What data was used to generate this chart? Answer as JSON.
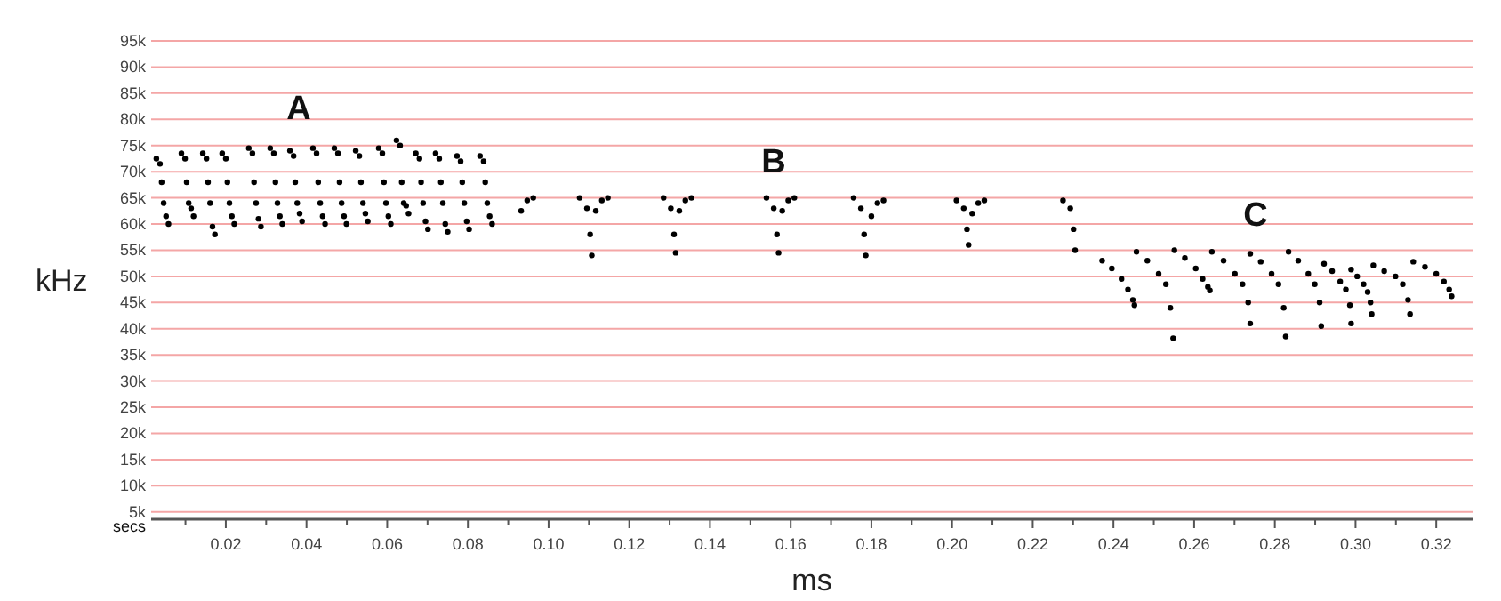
{
  "chart_data": {
    "type": "scatter",
    "xlabel": "ms",
    "ylabel": "kHz",
    "xlim": [
      0.0015,
      0.329
    ],
    "ylim": [
      3.6,
      95
    ],
    "xticks": [
      {
        "value": 0.01,
        "label": null
      },
      {
        "value": 0.02,
        "label": "0.02"
      },
      {
        "value": 0.03,
        "label": null
      },
      {
        "value": 0.04,
        "label": "0.04"
      },
      {
        "value": 0.05,
        "label": null
      },
      {
        "value": 0.06,
        "label": "0.06"
      },
      {
        "value": 0.07,
        "label": null
      },
      {
        "value": 0.08,
        "label": "0.08"
      },
      {
        "value": 0.09,
        "label": null
      },
      {
        "value": 0.1,
        "label": "0.10"
      },
      {
        "value": 0.11,
        "label": null
      },
      {
        "value": 0.12,
        "label": "0.12"
      },
      {
        "value": 0.13,
        "label": null
      },
      {
        "value": 0.14,
        "label": "0.14"
      },
      {
        "value": 0.15,
        "label": null
      },
      {
        "value": 0.16,
        "label": "0.16"
      },
      {
        "value": 0.17,
        "label": null
      },
      {
        "value": 0.18,
        "label": "0.18"
      },
      {
        "value": 0.19,
        "label": null
      },
      {
        "value": 0.2,
        "label": "0.20"
      },
      {
        "value": 0.21,
        "label": null
      },
      {
        "value": 0.22,
        "label": "0.22"
      },
      {
        "value": 0.23,
        "label": null
      },
      {
        "value": 0.24,
        "label": "0.24"
      },
      {
        "value": 0.25,
        "label": null
      },
      {
        "value": 0.26,
        "label": "0.26"
      },
      {
        "value": 0.27,
        "label": null
      },
      {
        "value": 0.28,
        "label": "0.28"
      },
      {
        "value": 0.29,
        "label": null
      },
      {
        "value": 0.3,
        "label": "0.30"
      },
      {
        "value": 0.31,
        "label": null
      },
      {
        "value": 0.32,
        "label": "0.32"
      }
    ],
    "yticks": [
      {
        "value": 5,
        "label": "5k"
      },
      {
        "value": 10,
        "label": "10k"
      },
      {
        "value": 15,
        "label": "15k"
      },
      {
        "value": 20,
        "label": "20k"
      },
      {
        "value": 25,
        "label": "25k"
      },
      {
        "value": 30,
        "label": "30k"
      },
      {
        "value": 35,
        "label": "35k"
      },
      {
        "value": 40,
        "label": "40k"
      },
      {
        "value": 45,
        "label": "45k"
      },
      {
        "value": 50,
        "label": "50k"
      },
      {
        "value": 55,
        "label": "55k"
      },
      {
        "value": 60,
        "label": "60k"
      },
      {
        "value": 65,
        "label": "65k"
      },
      {
        "value": 70,
        "label": "70k"
      },
      {
        "value": 75,
        "label": "75k"
      },
      {
        "value": 80,
        "label": "80k"
      },
      {
        "value": 85,
        "label": "85k"
      },
      {
        "value": 90,
        "label": "90k"
      },
      {
        "value": 95,
        "label": "95k"
      }
    ],
    "grid": "y",
    "marker": "circle",
    "annotations": [
      "A",
      "B",
      "C",
      "secs"
    ],
    "series": [
      {
        "color": "#000000",
        "x": [
          0.0028,
          0.0037,
          0.0041,
          0.0046,
          0.0052,
          0.0058,
          0.009,
          0.0099,
          0.0103,
          0.0108,
          0.0114,
          0.012,
          0.0143,
          0.0152,
          0.0156,
          0.0161,
          0.0167,
          0.0173,
          0.0191,
          0.02,
          0.0204,
          0.0209,
          0.0215,
          0.0221,
          0.0257,
          0.0266,
          0.027,
          0.0275,
          0.0281,
          0.0287,
          0.031,
          0.0319,
          0.0323,
          0.0328,
          0.0334,
          0.034,
          0.0359,
          0.0368,
          0.0372,
          0.0377,
          0.0383,
          0.0389,
          0.0416,
          0.0425,
          0.0429,
          0.0434,
          0.044,
          0.0446,
          0.0469,
          0.0478,
          0.0482,
          0.0487,
          0.0493,
          0.0499,
          0.0522,
          0.0531,
          0.0535,
          0.054,
          0.0546,
          0.0552,
          0.0579,
          0.0588,
          0.0592,
          0.0597,
          0.0603,
          0.0609,
          0.0623,
          0.0632,
          0.0636,
          0.0641,
          0.0647,
          0.0653,
          0.0671,
          0.068,
          0.0684,
          0.0689,
          0.0695,
          0.0701,
          0.072,
          0.0729,
          0.0733,
          0.0738,
          0.0744,
          0.075,
          0.0773,
          0.0782,
          0.0786,
          0.0791,
          0.0797,
          0.0803,
          0.083,
          0.0839,
          0.0843,
          0.0848,
          0.0854,
          0.086,
          0.0932,
          0.0947,
          0.0962,
          0.1077,
          0.1095,
          0.1103,
          0.1107,
          0.1117,
          0.1132,
          0.1147,
          0.1285,
          0.1303,
          0.1311,
          0.1315,
          0.1324,
          0.1339,
          0.1354,
          0.154,
          0.1558,
          0.1566,
          0.157,
          0.1579,
          0.1594,
          0.1609,
          0.1756,
          0.1774,
          0.1782,
          0.1786,
          0.18,
          0.1815,
          0.183,
          0.2011,
          0.2029,
          0.2037,
          0.2041,
          0.205,
          0.2065,
          0.208,
          0.2275,
          0.2293,
          0.2301,
          0.2305,
          0.2372,
          0.2396,
          0.242,
          0.2436,
          0.2448,
          0.2452,
          0.2457,
          0.2484,
          0.2512,
          0.253,
          0.2541,
          0.2548,
          0.2551,
          0.2577,
          0.2604,
          0.2621,
          0.2634,
          0.2639,
          0.2644,
          0.2673,
          0.2701,
          0.272,
          0.2734,
          0.2739,
          0.2739,
          0.2765,
          0.2792,
          0.2809,
          0.2822,
          0.2827,
          0.2834,
          0.2858,
          0.2883,
          0.2899,
          0.2911,
          0.2915,
          0.2922,
          0.2942,
          0.2962,
          0.2976,
          0.2986,
          0.2989,
          0.2989,
          0.3004,
          0.302,
          0.303,
          0.3037,
          0.304,
          0.3044,
          0.3071,
          0.3099,
          0.3117,
          0.313,
          0.3135,
          0.3143,
          0.3172,
          0.32,
          0.3219,
          0.3232,
          0.3238
        ],
        "values": [
          72.5,
          71.5,
          68,
          64,
          61.5,
          60,
          73.5,
          72.5,
          68,
          64,
          63,
          61.5,
          73.5,
          72.5,
          68,
          64,
          59.5,
          58,
          73.5,
          72.5,
          68,
          64,
          61.5,
          60,
          74.5,
          73.5,
          68,
          64,
          61,
          59.5,
          74.5,
          73.5,
          68,
          64,
          61.5,
          60,
          74,
          73,
          68,
          64,
          62,
          60.5,
          74.5,
          73.5,
          68,
          64,
          61.5,
          60,
          74.5,
          73.5,
          68,
          64,
          61.5,
          60,
          74,
          73,
          68,
          64,
          62,
          60.5,
          74.5,
          73.5,
          68,
          64,
          61.5,
          60,
          76,
          75,
          68,
          64,
          63.5,
          62,
          73.5,
          72.5,
          68,
          64,
          60.5,
          59,
          73.5,
          72.5,
          68,
          64,
          60,
          58.5,
          73,
          72,
          68,
          64,
          60.5,
          59,
          73,
          72,
          68,
          64,
          61.5,
          60,
          62.5,
          64.5,
          65,
          65,
          63,
          58,
          54,
          62.5,
          64.5,
          65,
          65,
          63,
          58,
          54.5,
          62.5,
          64.5,
          65,
          65,
          63,
          58,
          54.5,
          62.5,
          64.5,
          65,
          65,
          63,
          58,
          54,
          61.5,
          64,
          64.5,
          64.5,
          63,
          59,
          56,
          62,
          64,
          64.5,
          64.5,
          63,
          59,
          55,
          53.0,
          51.5,
          49.5,
          47.5,
          45.5,
          44.5,
          54.7,
          53.0,
          50.5,
          48.5,
          44,
          38.2,
          55.0,
          53.5,
          51.5,
          49.5,
          48,
          47.3,
          54.7,
          53.0,
          50.5,
          48.5,
          45,
          41.0,
          54.3,
          52.8,
          50.5,
          48.5,
          44,
          38.5,
          54.7,
          53.0,
          50.5,
          48.5,
          45,
          40.5,
          52.4,
          51.0,
          49,
          47.5,
          44.5,
          41.0,
          51.3,
          50.0,
          48.5,
          47,
          45,
          42.8,
          52.1,
          51.0,
          50,
          48.5,
          45.5,
          42.8,
          52.8,
          51.8,
          50.5,
          49,
          47.5,
          46.2
        ]
      }
    ]
  }
}
